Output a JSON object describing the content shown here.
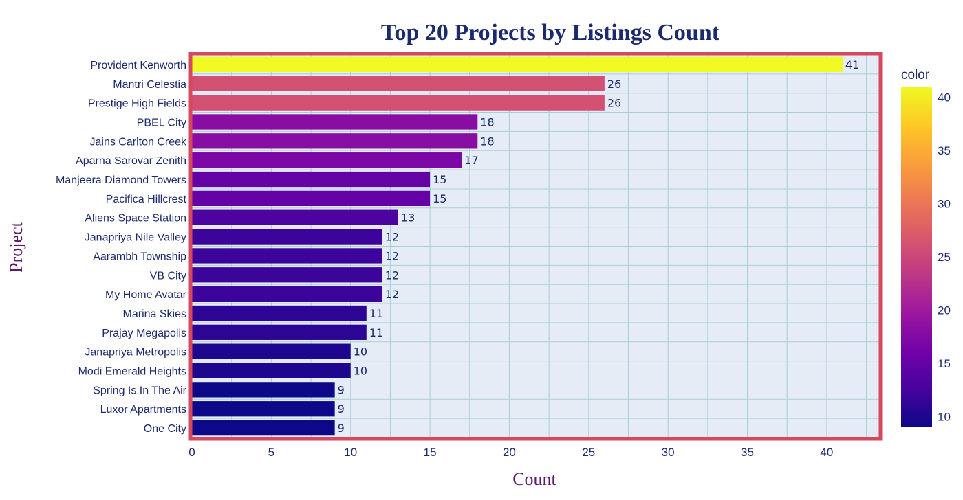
{
  "chart_data": {
    "type": "bar",
    "orientation": "horizontal",
    "title": "Top 20 Projects by Listings Count",
    "xlabel": "Count",
    "ylabel": "Project",
    "xlim": [
      0,
      43.3
    ],
    "x_ticks": [
      0,
      5,
      10,
      15,
      20,
      25,
      30,
      35,
      40
    ],
    "grid": true,
    "categories": [
      "Provident Kenworth",
      "Mantri Celestia",
      "Prestige High Fields",
      "PBEL City",
      "Jains Carlton Creek",
      "Aparna Sarovar Zenith",
      "Manjeera Diamond Towers",
      "Pacifica Hillcrest",
      "Aliens Space Station",
      "Janapriya Nile Valley",
      "Aarambh Township",
      "VB City",
      "My Home Avatar",
      "Marina Skies",
      "Prajay Megapolis",
      "Janapriya Metropolis",
      "Modi Emerald Heights",
      "Spring Is In The Air",
      "Luxor Apartments",
      "One City"
    ],
    "values": [
      41,
      26,
      26,
      18,
      18,
      17,
      15,
      15,
      13,
      12,
      12,
      12,
      12,
      11,
      11,
      10,
      10,
      9,
      9,
      9
    ],
    "colorbar": {
      "title": "color",
      "range": [
        9,
        41
      ],
      "ticks": [
        10,
        15,
        20,
        25,
        30,
        35,
        40
      ],
      "colorscale": [
        "#0d0887",
        "#46039f",
        "#7201a8",
        "#9c179e",
        "#bd3786",
        "#d8576b",
        "#ed7953",
        "#fb9f3a",
        "#fdca26",
        "#f0f921"
      ]
    },
    "colors": {
      "plot_background": "#e5ecf6",
      "plot_border": "#d6485e",
      "gridline": "#a8cfd6",
      "text": "#1a2a6c",
      "axis_title": "#5b1a6b"
    }
  }
}
